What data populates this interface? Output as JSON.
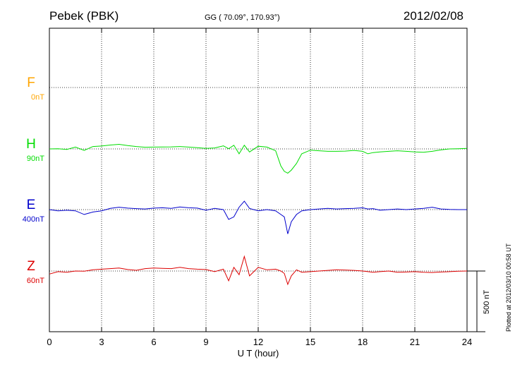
{
  "header": {
    "station": "Pebek (PBK)",
    "coords": "GG ( 70.09°, 170.93°)",
    "date": "2012/02/08"
  },
  "side_note": "Plotted at 2012/03/10 00:58 UT",
  "scale_bar": {
    "label": "500 nT",
    "value": 500
  },
  "colors": {
    "F": "#ffa500",
    "H": "#00dd00",
    "E": "#0000cc",
    "Z": "#dd0000"
  },
  "chart_data": {
    "type": "line",
    "xlabel": "U T (hour)",
    "xlim": [
      0,
      24
    ],
    "xticks": [
      0,
      3,
      6,
      9,
      12,
      15,
      18,
      21,
      24
    ],
    "xtick_labels": [
      "0",
      "3",
      "6",
      "9",
      "12",
      "15",
      "18",
      "21",
      "24"
    ],
    "grid": true,
    "series": [
      {
        "name": "F",
        "scale": "0nT",
        "color": "#ffa500",
        "x": [],
        "values": []
      },
      {
        "name": "H",
        "scale": "90nT",
        "color": "#00dd00",
        "x": [
          0,
          0.5,
          1,
          1.5,
          2,
          2.5,
          3,
          3.5,
          4,
          4.5,
          5,
          5.5,
          6,
          6.5,
          7,
          7.5,
          8,
          8.5,
          9,
          9.5,
          10,
          10.3,
          10.6,
          10.9,
          11.2,
          11.5,
          12,
          12.5,
          13,
          13.3,
          13.5,
          13.7,
          13.9,
          14.2,
          14.5,
          15,
          15.5,
          16,
          16.5,
          17,
          17.5,
          18,
          18.3,
          18.6,
          19,
          19.5,
          20,
          20.5,
          21,
          21.5,
          22,
          22.5,
          23,
          23.5,
          24
        ],
        "values": [
          0,
          2,
          -4,
          15,
          -12,
          20,
          24,
          32,
          38,
          28,
          20,
          14,
          15,
          16,
          17,
          20,
          15,
          10,
          4,
          8,
          25,
          2,
          30,
          -40,
          30,
          -25,
          22,
          15,
          -15,
          -140,
          -185,
          -200,
          -175,
          -120,
          -40,
          -10,
          -15,
          -20,
          -20,
          -18,
          -12,
          -20,
          -40,
          -30,
          -25,
          -20,
          -15,
          -20,
          -25,
          -28,
          -20,
          -8,
          0,
          2,
          4
        ]
      },
      {
        "name": "E",
        "scale": "400nT",
        "color": "#0000cc",
        "x": [
          0,
          0.5,
          1,
          1.5,
          2,
          2.5,
          3,
          3.5,
          4,
          4.5,
          5,
          5.5,
          6,
          6.5,
          7,
          7.5,
          8,
          8.5,
          9,
          9.5,
          10,
          10.3,
          10.6,
          10.9,
          11.2,
          11.5,
          12,
          12.5,
          13,
          13.3,
          13.5,
          13.7,
          13.9,
          14.2,
          14.5,
          15,
          15.5,
          16,
          16.5,
          17,
          17.5,
          18,
          18.3,
          18.6,
          19,
          19.5,
          20,
          20.5,
          21,
          21.5,
          22,
          22.5,
          23,
          23.5,
          24
        ],
        "values": [
          0,
          -10,
          -5,
          -10,
          -40,
          -20,
          -10,
          10,
          20,
          12,
          8,
          5,
          12,
          15,
          10,
          22,
          15,
          12,
          -5,
          10,
          0,
          -80,
          -60,
          20,
          70,
          10,
          -10,
          0,
          -10,
          -40,
          -60,
          -200,
          -100,
          -40,
          -10,
          0,
          5,
          10,
          5,
          8,
          10,
          15,
          5,
          8,
          -5,
          0,
          5,
          0,
          5,
          10,
          20,
          5,
          2,
          0,
          0
        ]
      },
      {
        "name": "Z",
        "scale": "60nT",
        "color": "#dd0000",
        "x": [
          0,
          0.5,
          1,
          1.5,
          2,
          2.5,
          3,
          3.5,
          4,
          4.5,
          5,
          5.5,
          6,
          6.5,
          7,
          7.5,
          8,
          8.5,
          9,
          9.5,
          10,
          10.3,
          10.6,
          10.9,
          11.2,
          11.5,
          12,
          12.5,
          13,
          13.3,
          13.5,
          13.7,
          13.9,
          14.2,
          14.5,
          15,
          15.5,
          16,
          16.5,
          17,
          17.5,
          18,
          18.3,
          18.6,
          19,
          19.5,
          20,
          20.5,
          21,
          21.5,
          22,
          22.5,
          23,
          23.5,
          24
        ],
        "values": [
          -25,
          -5,
          -10,
          0,
          -2,
          10,
          15,
          20,
          25,
          12,
          6,
          20,
          25,
          22,
          20,
          30,
          20,
          15,
          12,
          -5,
          15,
          -80,
          30,
          -30,
          120,
          -40,
          30,
          10,
          15,
          0,
          -20,
          -110,
          -40,
          10,
          -10,
          -5,
          0,
          5,
          10,
          8,
          5,
          0,
          -5,
          -10,
          -5,
          0,
          -10,
          -8,
          -5,
          -10,
          -12,
          -8,
          -5,
          -2,
          0
        ]
      }
    ]
  }
}
